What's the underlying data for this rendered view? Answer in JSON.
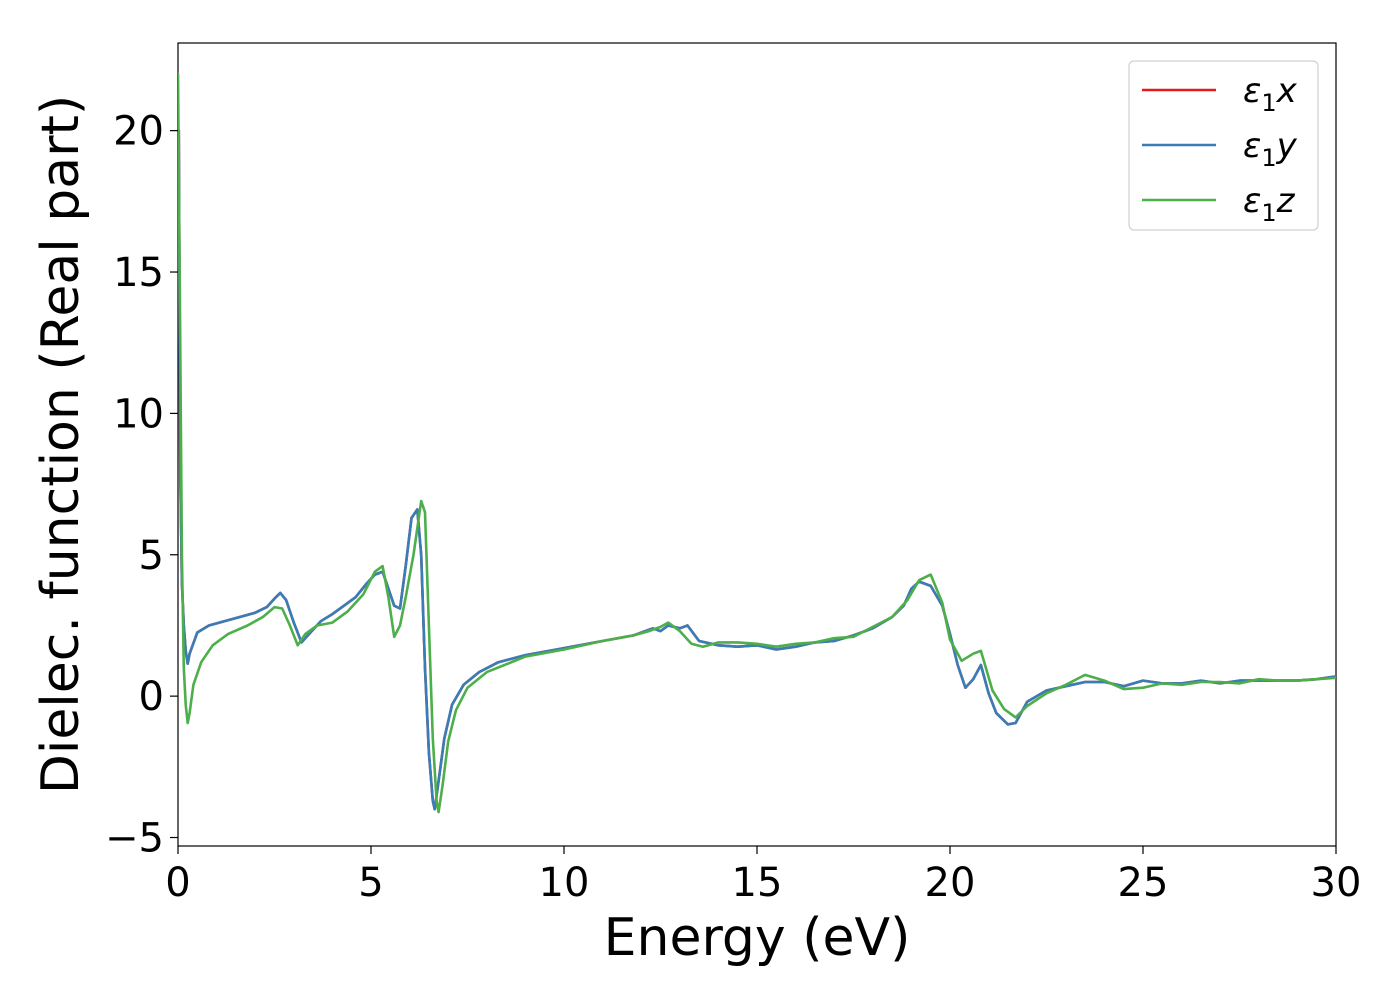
{
  "chart_data": {
    "type": "line",
    "title": "",
    "xlabel": "Energy (eV)",
    "ylabel": "Dielec. function (Real part)",
    "xlim": [
      0,
      30
    ],
    "ylim": [
      -5.3,
      23.1
    ],
    "xticks": [
      0,
      5,
      10,
      15,
      20,
      25,
      30
    ],
    "xtick_labels": [
      "0",
      "5",
      "10",
      "15",
      "20",
      "25",
      "30"
    ],
    "yticks": [
      -5,
      0,
      5,
      10,
      15,
      20
    ],
    "ytick_labels": [
      "−5",
      "0",
      "5",
      "10",
      "15",
      "20"
    ],
    "grid": false,
    "legend_position": "top-right",
    "legend_subscript": "1",
    "series": [
      {
        "name": "ε₁x",
        "legend_base": "ε",
        "legend_suffix": "x",
        "color": "#e41a1c",
        "x": [
          0.02,
          0.06,
          0.1,
          0.15,
          0.2,
          0.25,
          0.3,
          0.5,
          0.8,
          1.2,
          1.6,
          2.0,
          2.3,
          2.5,
          2.65,
          2.8,
          3.0,
          3.2,
          3.4,
          3.7,
          4.0,
          4.3,
          4.6,
          4.9,
          5.1,
          5.3,
          5.45,
          5.6,
          5.75,
          5.9,
          6.05,
          6.2,
          6.3,
          6.4,
          6.5,
          6.6,
          6.65,
          6.75,
          6.9,
          7.1,
          7.4,
          7.8,
          8.3,
          9.0,
          10.0,
          11.0,
          11.8,
          12.3,
          12.5,
          12.7,
          13.0,
          13.2,
          13.5,
          14.0,
          14.5,
          15.0,
          15.5,
          16.0,
          16.5,
          17.0,
          17.5,
          18.0,
          18.5,
          18.8,
          19.0,
          19.2,
          19.5,
          19.8,
          20.0,
          20.2,
          20.4,
          20.6,
          20.8,
          21.0,
          21.2,
          21.5,
          21.7,
          22.0,
          22.5,
          23.0,
          23.5,
          24.0,
          24.5,
          25.0,
          25.5,
          26.0,
          26.5,
          27.0,
          27.5,
          28.0,
          28.5,
          29.0,
          29.5,
          30.0
        ],
        "y": [
          20.0,
          8.0,
          4.0,
          2.5,
          1.6,
          1.15,
          1.5,
          2.25,
          2.5,
          2.65,
          2.8,
          2.95,
          3.15,
          3.45,
          3.65,
          3.4,
          2.6,
          1.9,
          2.2,
          2.65,
          2.9,
          3.2,
          3.5,
          4.0,
          4.3,
          4.4,
          3.8,
          3.2,
          3.1,
          4.6,
          6.3,
          6.6,
          5.0,
          1.0,
          -2.0,
          -3.7,
          -4.0,
          -3.0,
          -1.5,
          -0.3,
          0.4,
          0.85,
          1.2,
          1.45,
          1.7,
          1.95,
          2.15,
          2.4,
          2.3,
          2.5,
          2.4,
          2.5,
          1.95,
          1.8,
          1.75,
          1.8,
          1.65,
          1.75,
          1.9,
          1.95,
          2.15,
          2.4,
          2.8,
          3.2,
          3.8,
          4.05,
          3.9,
          3.2,
          2.2,
          1.1,
          0.3,
          0.6,
          1.1,
          0.1,
          -0.6,
          -1.0,
          -0.95,
          -0.2,
          0.2,
          0.35,
          0.5,
          0.5,
          0.35,
          0.55,
          0.45,
          0.45,
          0.55,
          0.45,
          0.55,
          0.55,
          0.55,
          0.55,
          0.6,
          0.7
        ]
      },
      {
        "name": "ε₁y",
        "legend_base": "ε",
        "legend_suffix": "y",
        "color": "#377eb8",
        "x": [
          0.02,
          0.06,
          0.1,
          0.15,
          0.2,
          0.25,
          0.3,
          0.5,
          0.8,
          1.2,
          1.6,
          2.0,
          2.3,
          2.5,
          2.65,
          2.8,
          3.0,
          3.2,
          3.4,
          3.7,
          4.0,
          4.3,
          4.6,
          4.9,
          5.1,
          5.3,
          5.45,
          5.6,
          5.75,
          5.9,
          6.05,
          6.2,
          6.3,
          6.4,
          6.5,
          6.6,
          6.65,
          6.75,
          6.9,
          7.1,
          7.4,
          7.8,
          8.3,
          9.0,
          10.0,
          11.0,
          11.8,
          12.3,
          12.5,
          12.7,
          13.0,
          13.2,
          13.5,
          14.0,
          14.5,
          15.0,
          15.5,
          16.0,
          16.5,
          17.0,
          17.5,
          18.0,
          18.5,
          18.8,
          19.0,
          19.2,
          19.5,
          19.8,
          20.0,
          20.2,
          20.4,
          20.6,
          20.8,
          21.0,
          21.2,
          21.5,
          21.7,
          22.0,
          22.5,
          23.0,
          23.5,
          24.0,
          24.5,
          25.0,
          25.5,
          26.0,
          26.5,
          27.0,
          27.5,
          28.0,
          28.5,
          29.0,
          29.5,
          30.0
        ],
        "y": [
          20.0,
          8.0,
          4.0,
          2.5,
          1.6,
          1.15,
          1.5,
          2.25,
          2.5,
          2.65,
          2.8,
          2.95,
          3.15,
          3.45,
          3.65,
          3.4,
          2.6,
          1.9,
          2.2,
          2.65,
          2.9,
          3.2,
          3.5,
          4.0,
          4.3,
          4.4,
          3.8,
          3.2,
          3.1,
          4.6,
          6.3,
          6.6,
          5.0,
          1.0,
          -2.0,
          -3.7,
          -4.0,
          -3.0,
          -1.5,
          -0.3,
          0.4,
          0.85,
          1.2,
          1.45,
          1.7,
          1.95,
          2.15,
          2.4,
          2.3,
          2.5,
          2.4,
          2.5,
          1.95,
          1.8,
          1.75,
          1.8,
          1.65,
          1.75,
          1.9,
          1.95,
          2.15,
          2.4,
          2.8,
          3.2,
          3.8,
          4.05,
          3.9,
          3.2,
          2.2,
          1.1,
          0.3,
          0.6,
          1.1,
          0.1,
          -0.6,
          -1.0,
          -0.95,
          -0.2,
          0.2,
          0.35,
          0.5,
          0.5,
          0.35,
          0.55,
          0.45,
          0.45,
          0.55,
          0.45,
          0.55,
          0.55,
          0.55,
          0.55,
          0.6,
          0.7
        ]
      },
      {
        "name": "ε₁z",
        "legend_base": "ε",
        "legend_suffix": "z",
        "color": "#4daf4a",
        "x": [
          0.0,
          0.05,
          0.1,
          0.15,
          0.2,
          0.25,
          0.3,
          0.4,
          0.6,
          0.9,
          1.3,
          1.8,
          2.2,
          2.5,
          2.7,
          2.9,
          3.1,
          3.3,
          3.6,
          4.0,
          4.4,
          4.8,
          5.1,
          5.3,
          5.45,
          5.6,
          5.75,
          5.9,
          6.1,
          6.3,
          6.4,
          6.5,
          6.6,
          6.7,
          6.75,
          6.85,
          7.0,
          7.2,
          7.5,
          8.0,
          9.0,
          10.0,
          11.0,
          11.8,
          12.2,
          12.5,
          12.7,
          13.0,
          13.3,
          13.6,
          14.0,
          14.5,
          15.0,
          15.5,
          16.0,
          16.5,
          17.0,
          17.5,
          18.0,
          18.5,
          18.9,
          19.2,
          19.5,
          19.8,
          20.0,
          20.3,
          20.6,
          20.8,
          21.1,
          21.4,
          21.7,
          22.0,
          22.5,
          23.0,
          23.5,
          24.0,
          24.5,
          25.0,
          25.5,
          26.0,
          26.5,
          27.0,
          27.5,
          28.0,
          28.5,
          29.0,
          29.5,
          30.0
        ],
        "y": [
          22.0,
          14.0,
          5.0,
          1.0,
          -0.3,
          -0.95,
          -0.6,
          0.4,
          1.2,
          1.8,
          2.2,
          2.5,
          2.8,
          3.15,
          3.1,
          2.5,
          1.8,
          2.2,
          2.5,
          2.6,
          3.0,
          3.6,
          4.4,
          4.6,
          3.5,
          2.1,
          2.5,
          3.5,
          5.0,
          6.9,
          6.5,
          2.5,
          -1.5,
          -3.7,
          -4.1,
          -3.2,
          -1.6,
          -0.5,
          0.3,
          0.85,
          1.4,
          1.65,
          1.95,
          2.15,
          2.3,
          2.45,
          2.6,
          2.3,
          1.85,
          1.75,
          1.9,
          1.9,
          1.85,
          1.75,
          1.85,
          1.9,
          2.05,
          2.1,
          2.45,
          2.8,
          3.4,
          4.1,
          4.3,
          3.3,
          2.0,
          1.25,
          1.5,
          1.6,
          0.2,
          -0.45,
          -0.75,
          -0.35,
          0.1,
          0.4,
          0.75,
          0.55,
          0.25,
          0.3,
          0.45,
          0.4,
          0.5,
          0.5,
          0.45,
          0.6,
          0.55,
          0.55,
          0.6,
          0.65
        ]
      }
    ]
  }
}
